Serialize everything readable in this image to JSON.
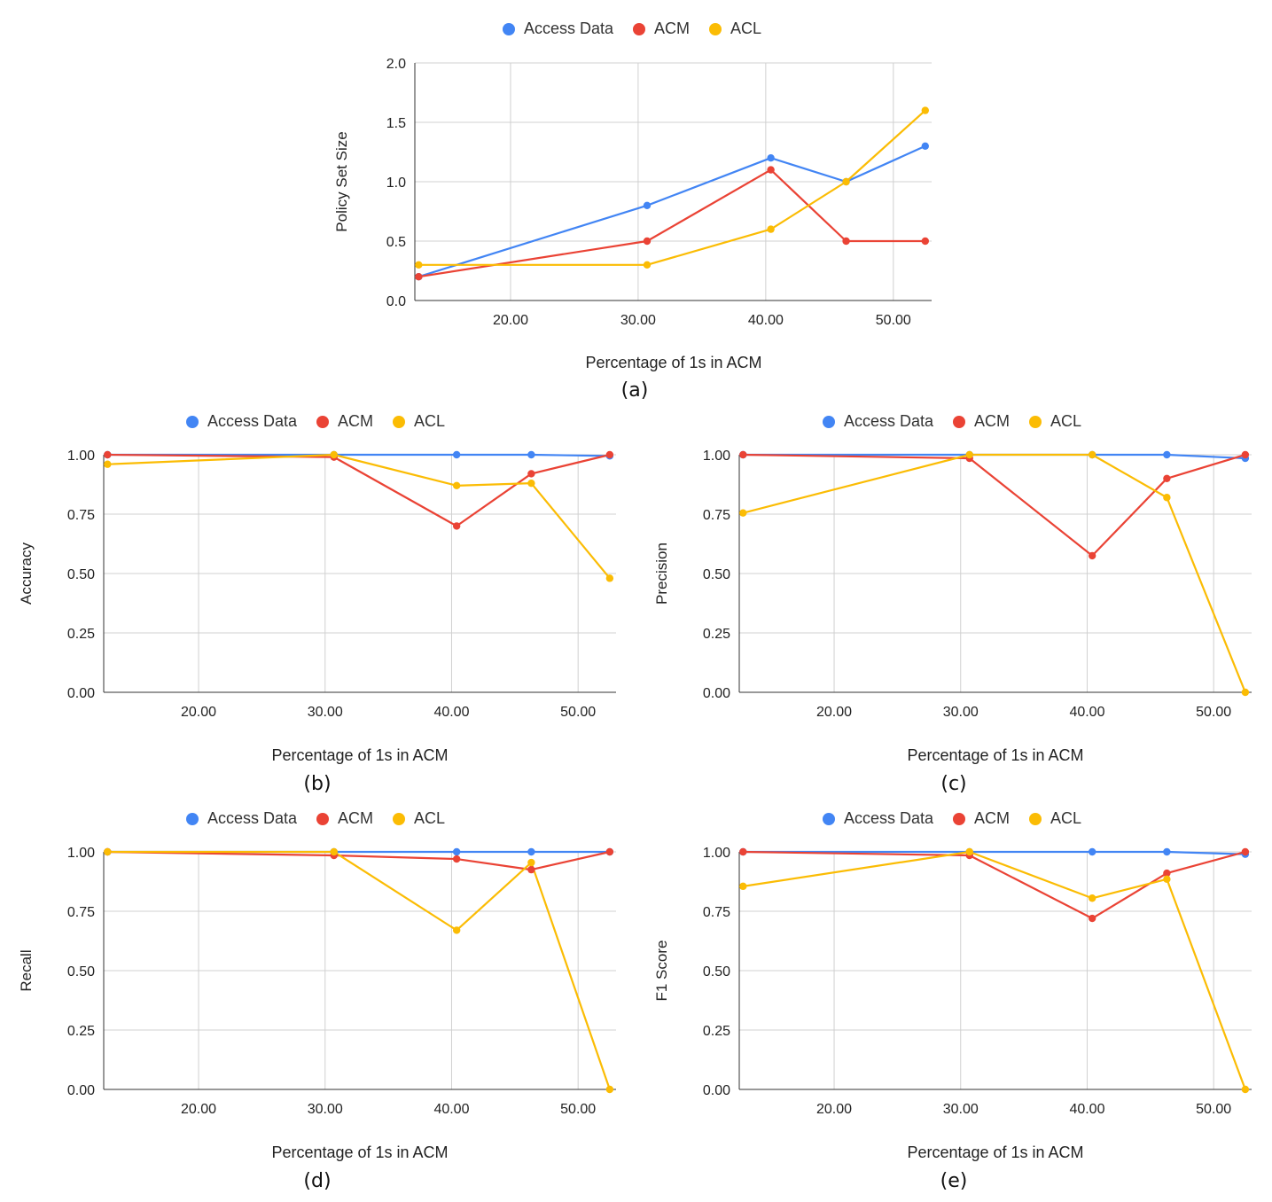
{
  "colors": {
    "access_data": "#4285F4",
    "acm": "#EA4335",
    "acl": "#FBBC04",
    "grid": "#d0d0d0",
    "axis": "#333333"
  },
  "legend": [
    "Access Data",
    "ACM",
    "ACL"
  ],
  "chart_data": [
    {
      "id": "a",
      "caption": "(a)",
      "type": "line",
      "title": "",
      "xlabel": "Percentage of 1s in ACM",
      "ylabel": "Policy Set Size",
      "xlim": [
        12.5,
        53
      ],
      "ylim": [
        0,
        2
      ],
      "xticks": [
        "20.00",
        "30.00",
        "40.00",
        "50.00"
      ],
      "yticks": [
        "0.0",
        "0.5",
        "1.0",
        "1.5",
        "2.0"
      ],
      "x": [
        12.8,
        30.7,
        40.4,
        46.3,
        52.5
      ],
      "series": [
        {
          "name": "Access Data",
          "values": [
            0.2,
            0.8,
            1.2,
            1.0,
            1.3
          ]
        },
        {
          "name": "ACM",
          "values": [
            0.2,
            0.5,
            1.1,
            0.5,
            0.5
          ]
        },
        {
          "name": "ACL",
          "values": [
            0.3,
            0.3,
            0.6,
            1.0,
            1.6
          ]
        }
      ]
    },
    {
      "id": "b",
      "caption": "(b)",
      "type": "line",
      "title": "",
      "xlabel": "Percentage of 1s in ACM",
      "ylabel": "Accuracy",
      "xlim": [
        12.5,
        53
      ],
      "ylim": [
        0,
        1
      ],
      "xticks": [
        "20.00",
        "30.00",
        "40.00",
        "50.00"
      ],
      "yticks": [
        "0.00",
        "0.25",
        "0.50",
        "0.75",
        "1.00"
      ],
      "x": [
        12.8,
        30.7,
        40.4,
        46.3,
        52.5
      ],
      "series": [
        {
          "name": "Access Data",
          "values": [
            1.0,
            1.0,
            1.0,
            1.0,
            0.995
          ]
        },
        {
          "name": "ACM",
          "values": [
            1.0,
            0.99,
            0.7,
            0.92,
            1.0
          ]
        },
        {
          "name": "ACL",
          "values": [
            0.96,
            1.0,
            0.87,
            0.88,
            0.48
          ]
        }
      ]
    },
    {
      "id": "c",
      "caption": "(c)",
      "type": "line",
      "title": "",
      "xlabel": "Percentage of 1s in ACM",
      "ylabel": "Precision",
      "xlim": [
        12.5,
        53
      ],
      "ylim": [
        0,
        1
      ],
      "xticks": [
        "20.00",
        "30.00",
        "40.00",
        "50.00"
      ],
      "yticks": [
        "0.00",
        "0.25",
        "0.50",
        "0.75",
        "1.00"
      ],
      "x": [
        12.8,
        30.7,
        40.4,
        46.3,
        52.5
      ],
      "series": [
        {
          "name": "Access Data",
          "values": [
            1.0,
            1.0,
            1.0,
            1.0,
            0.985
          ]
        },
        {
          "name": "ACM",
          "values": [
            1.0,
            0.985,
            0.575,
            0.9,
            1.0
          ]
        },
        {
          "name": "ACL",
          "values": [
            0.755,
            1.0,
            1.0,
            0.82,
            0.0
          ]
        }
      ]
    },
    {
      "id": "d",
      "caption": "(d)",
      "type": "line",
      "title": "",
      "xlabel": "Percentage of 1s in ACM",
      "ylabel": "Recall",
      "xlim": [
        12.5,
        53
      ],
      "ylim": [
        0,
        1
      ],
      "xticks": [
        "20.00",
        "30.00",
        "40.00",
        "50.00"
      ],
      "yticks": [
        "0.00",
        "0.25",
        "0.50",
        "0.75",
        "1.00"
      ],
      "x": [
        12.8,
        30.7,
        40.4,
        46.3,
        52.5
      ],
      "series": [
        {
          "name": "Access Data",
          "values": [
            1.0,
            1.0,
            1.0,
            1.0,
            1.0
          ]
        },
        {
          "name": "ACM",
          "values": [
            1.0,
            0.985,
            0.97,
            0.925,
            1.0
          ]
        },
        {
          "name": "ACL",
          "values": [
            1.0,
            1.0,
            0.67,
            0.955,
            0.0
          ]
        }
      ]
    },
    {
      "id": "e",
      "caption": "(e)",
      "type": "line",
      "title": "",
      "xlabel": "Percentage of 1s in ACM",
      "ylabel": "F1 Score",
      "xlim": [
        12.5,
        53
      ],
      "ylim": [
        0,
        1
      ],
      "xticks": [
        "20.00",
        "30.00",
        "40.00",
        "50.00"
      ],
      "yticks": [
        "0.00",
        "0.25",
        "0.50",
        "0.75",
        "1.00"
      ],
      "x": [
        12.8,
        30.7,
        40.4,
        46.3,
        52.5
      ],
      "series": [
        {
          "name": "Access Data",
          "values": [
            1.0,
            1.0,
            1.0,
            1.0,
            0.99
          ]
        },
        {
          "name": "ACM",
          "values": [
            1.0,
            0.985,
            0.72,
            0.91,
            1.0
          ]
        },
        {
          "name": "ACL",
          "values": [
            0.855,
            1.0,
            0.805,
            0.885,
            0.0
          ]
        }
      ]
    }
  ]
}
